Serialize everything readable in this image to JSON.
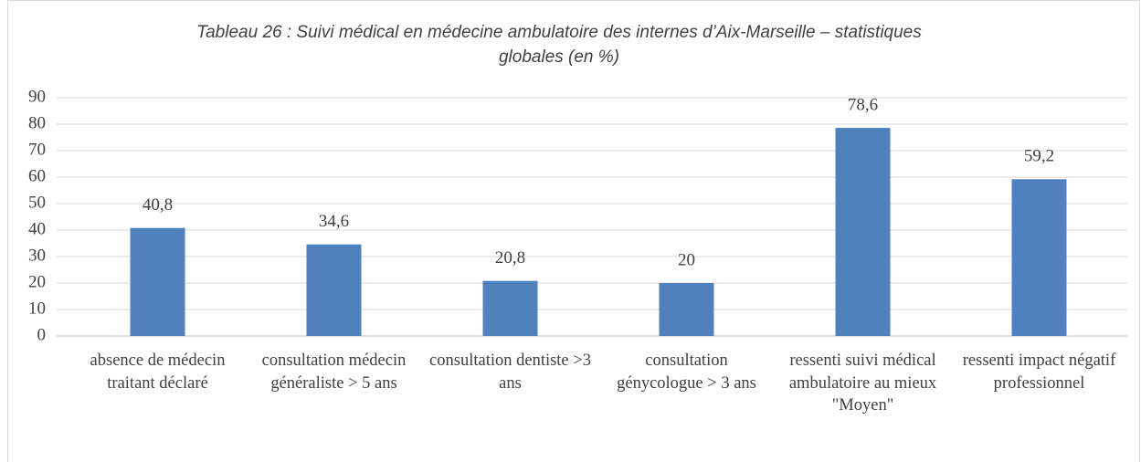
{
  "chart_data": {
    "type": "bar",
    "title": "Tableau 26 : Suivi médical en médecine ambulatoire des internes d’Aix-Marseille – statistiques globales (en %)",
    "categories": [
      "absence de médecin traitant déclaré",
      "consultation médecin généraliste > 5 ans",
      "consultation dentiste >3 ans",
      "consultation génycologue > 3 ans",
      "ressenti suivi médical ambulatoire au mieux \"Moyen\"",
      "ressenti impact négatif professionnel"
    ],
    "values": [
      40.8,
      34.6,
      20.8,
      20,
      78.6,
      59.2
    ],
    "value_labels": [
      "40,8",
      "34,6",
      "20,8",
      "20",
      "78,6",
      "59,2"
    ],
    "color": "#4f81bd",
    "ylim": [
      0,
      90
    ],
    "yticks": [
      0,
      10,
      20,
      30,
      40,
      50,
      60,
      70,
      80,
      90
    ],
    "grid": true
  }
}
